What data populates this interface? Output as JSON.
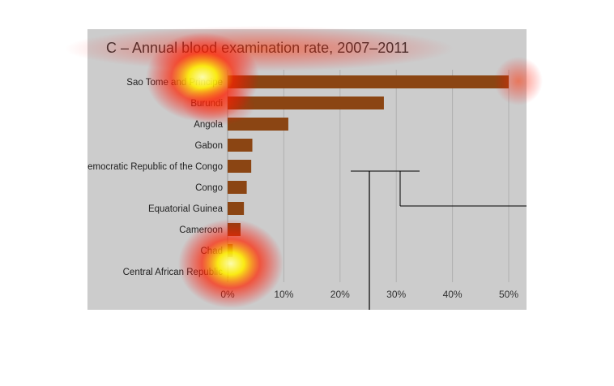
{
  "chart_data": {
    "type": "bar",
    "orientation": "horizontal",
    "title": "C – Annual blood examination rate, 2007–2011",
    "categories": [
      "Sao Tome and Principe",
      "Burundi",
      "Angola",
      "Gabon",
      "Democratic Republic of the Congo",
      "Congo",
      "Equatorial Guinea",
      "Cameroon",
      "Chad",
      "Central African Republic"
    ],
    "values": [
      50.0,
      27.8,
      10.8,
      4.4,
      4.2,
      3.4,
      2.9,
      2.3,
      0.9,
      0.1
    ],
    "xticks": [
      "0%",
      "10%",
      "20%",
      "30%",
      "40%",
      "50%"
    ],
    "xlim": [
      0,
      50
    ],
    "xlabel": "",
    "ylabel": "",
    "grid": true,
    "bar_color": "#8b4513",
    "background_color": "#cccccc"
  },
  "overlay": {
    "type": "attention-heatmap",
    "colors": [
      "#ff0000",
      "#ffff00"
    ]
  }
}
